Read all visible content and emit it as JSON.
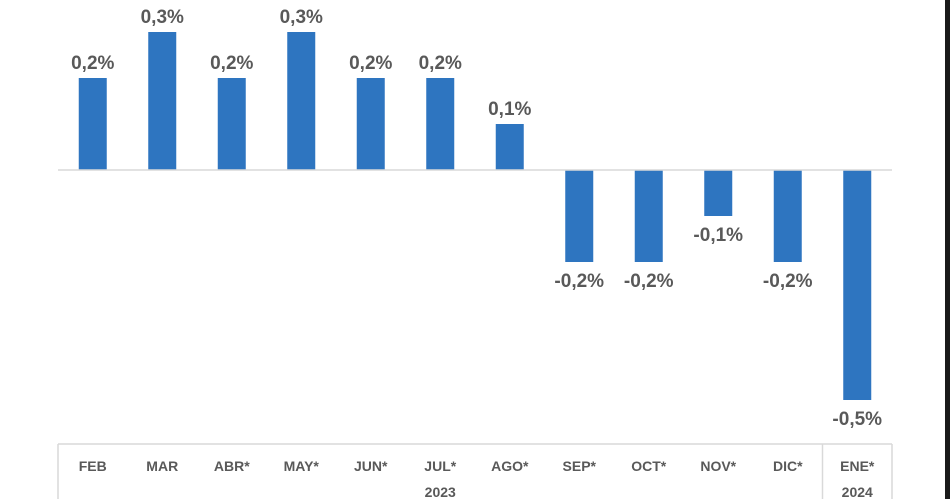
{
  "chart_data": {
    "type": "bar",
    "title": "",
    "xlabel": "",
    "ylabel": "",
    "ylim": [
      -0.5,
      0.3
    ],
    "grid": false,
    "categories": [
      "FEB",
      "MAR",
      "ABR*",
      "MAY*",
      "JUN*",
      "JUL*",
      "AGO*",
      "SEP*",
      "OCT*",
      "NOV*",
      "DIC*",
      "ENE*"
    ],
    "values": [
      0.2,
      0.3,
      0.2,
      0.3,
      0.2,
      0.2,
      0.1,
      -0.2,
      -0.2,
      -0.1,
      -0.2,
      -0.5
    ],
    "data_labels": [
      "0,2%",
      "0,3%",
      "0,2%",
      "0,3%",
      "0,2%",
      "0,2%",
      "0,1%",
      "-0,2%",
      "-0,2%",
      "-0,1%",
      "-0,2%",
      "-0,5%"
    ],
    "year_groups": [
      {
        "label": "2023",
        "from": 0,
        "to": 10
      },
      {
        "label": "2024",
        "from": 11,
        "to": 11
      }
    ],
    "colors": {
      "bar": "#2E75C0",
      "label": "#595959",
      "axis": "#d9d9d9"
    }
  }
}
